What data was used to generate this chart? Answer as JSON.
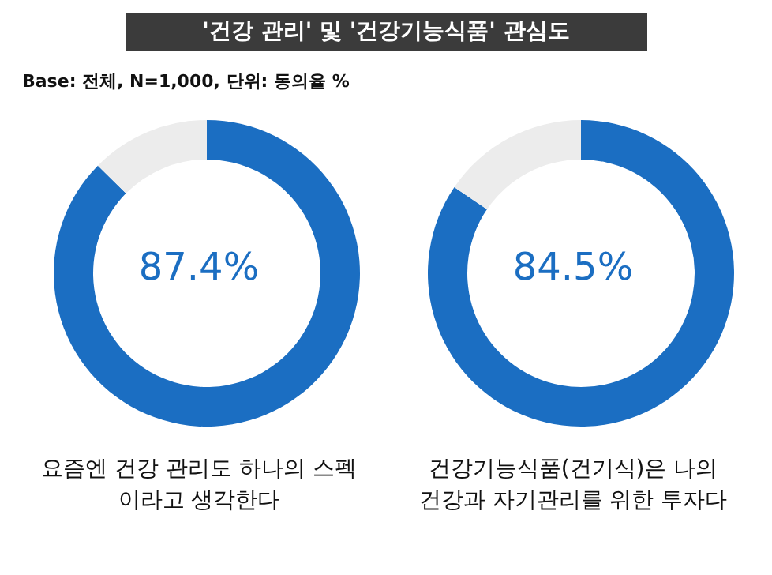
{
  "chart_data": [
    {
      "type": "donut",
      "title": "'건강 관리' 및 '건강기능식품' 관심도",
      "annotations": [
        "Base: 전체, N=1,000, 단위: 동의율 %"
      ],
      "categories": [
        null,
        null
      ],
      "values": [
        87.4,
        12.6
      ],
      "colors": [
        "#1b6ec2",
        "#ececec"
      ],
      "value_labels": [
        "87.4%",
        null
      ],
      "xlabel": "요즘엔 건강 관리도 하나의 스펙이라고 생각한다"
    },
    {
      "type": "donut",
      "categories": [
        null,
        null
      ],
      "values": [
        84.5,
        15.5
      ],
      "colors": [
        "#1b6ec2",
        "#ececec"
      ],
      "value_labels": [
        "84.5%",
        null
      ],
      "xlabel": "건강기능식품(건기식)은 나의 건강과 자기관리를 위한 투자다"
    }
  ]
}
